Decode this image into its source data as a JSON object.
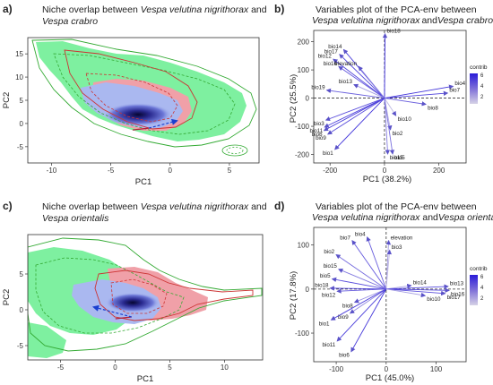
{
  "chart_data": [
    {
      "panel_label": "a)",
      "type": "scatter",
      "title_parts": [
        {
          "text": "Niche overlap between ",
          "italic": false
        },
        {
          "text": "Vespa velutina nigrithorax",
          "italic": true
        },
        {
          "text": " and",
          "italic": false
        }
      ],
      "title_line2_parts": [
        {
          "text": "Vespa crabro",
          "italic": true
        }
      ],
      "xlabel": "PC1",
      "ylabel": "PC2",
      "xticks": [
        -10,
        -5,
        0,
        5
      ],
      "yticks": [
        -5,
        0,
        5,
        10,
        15
      ],
      "xlim": [
        -12,
        7.5
      ],
      "ylim": [
        -8.5,
        18.5
      ],
      "colors": {
        "species_a": "#7ef0a0",
        "species_b": "#f0a0a8",
        "overlap": "#aab8f0",
        "density": "#0b0b45",
        "arrow": "#1a3fd0"
      },
      "arrow": {
        "from": [
          -1.8,
          -1.0
        ],
        "to": [
          0.6,
          0.6
        ]
      }
    },
    {
      "panel_label": "b)",
      "type": "scatter",
      "title_line1": "Variables plot of the PCA-env between",
      "title_parts": [
        {
          "text": "Vespa velutina nigrithorax",
          "italic": true
        },
        {
          "text": "and",
          "italic": false
        },
        {
          "text": "Vespa crabro",
          "italic": true
        }
      ],
      "xlabel": "PC1 (38.2%)",
      "ylabel": "PC2 (25.5%)",
      "xticks": [
        -200,
        0,
        200
      ],
      "yticks": [
        -200,
        -100,
        0,
        100,
        200
      ],
      "xlim": [
        -260,
        300
      ],
      "ylim": [
        -230,
        240
      ],
      "legend": {
        "title": "contrib",
        "ticks": [
          6,
          4,
          2
        ],
        "placement": "right"
      },
      "vectors": [
        {
          "name": "bio18",
          "x": 2,
          "y": 228,
          "contrib": 6.5
        },
        {
          "name": "bio14",
          "x": -150,
          "y": 172,
          "contrib": 5.6
        },
        {
          "name": "bio17",
          "x": -165,
          "y": 155,
          "contrib": 5.6
        },
        {
          "name": "bio12",
          "x": -188,
          "y": 138,
          "contrib": 5.5
        },
        {
          "name": "elevation",
          "x": -95,
          "y": 112,
          "contrib": 3.2
        },
        {
          "name": "bio16",
          "x": -168,
          "y": 112,
          "contrib": 4.6
        },
        {
          "name": "bio13",
          "x": -112,
          "y": 48,
          "contrib": 2.0
        },
        {
          "name": "bio19",
          "x": -212,
          "y": 28,
          "contrib": 4.3
        },
        {
          "name": "bio4",
          "x": 252,
          "y": 42,
          "contrib": 6.0
        },
        {
          "name": "bio7",
          "x": 232,
          "y": 18,
          "contrib": 5.5
        },
        {
          "name": "bio8",
          "x": 152,
          "y": -22,
          "contrib": 4.2
        },
        {
          "name": "bio10",
          "x": 42,
          "y": -62,
          "contrib": 1.0
        },
        {
          "name": "bio2",
          "x": 22,
          "y": -112,
          "contrib": 1.3
        },
        {
          "name": "bio3",
          "x": -215,
          "y": -78,
          "contrib": 5.0
        },
        {
          "name": "bio11",
          "x": -220,
          "y": -103,
          "contrib": 5.6
        },
        {
          "name": "bio6",
          "x": -222,
          "y": -115,
          "contrib": 5.8
        },
        {
          "name": "bio9",
          "x": -208,
          "y": -128,
          "contrib": 5.0
        },
        {
          "name": "bio1",
          "x": -182,
          "y": -182,
          "contrib": 6.1
        },
        {
          "name": "bio15",
          "x": 12,
          "y": -198,
          "contrib": 3.2
        },
        {
          "name": "bio5",
          "x": 30,
          "y": -198,
          "contrib": 3.8
        }
      ]
    },
    {
      "panel_label": "c)",
      "type": "scatter",
      "title_parts": [
        {
          "text": "Niche overlap between ",
          "italic": false
        },
        {
          "text": "Vespa velutina nigrithorax",
          "italic": true
        },
        {
          "text": " and",
          "italic": false
        }
      ],
      "title_line2_parts": [
        {
          "text": "Vespa orientalis",
          "italic": true
        }
      ],
      "xlabel": "PC1",
      "ylabel": "PC2",
      "xticks": [
        -5,
        0,
        5,
        10
      ],
      "yticks": [
        -5,
        0,
        5
      ],
      "xlim": [
        -8,
        13.5
      ],
      "ylim": [
        -7,
        10.5
      ],
      "colors": {
        "species_a": "#7ef0a0",
        "species_b": "#f0a0a8",
        "overlap": "#aab8f0",
        "density": "#0b0b45",
        "arrow": "#1a3fd0"
      },
      "arrow": {
        "from": [
          1.5,
          -1.0
        ],
        "to": [
          -2.0,
          0.4
        ]
      }
    },
    {
      "panel_label": "d)",
      "type": "scatter",
      "title_line1": "Variables plot of the PCA-env between",
      "title_parts": [
        {
          "text": "Vespa velutina nigrithorax",
          "italic": true
        },
        {
          "text": " and",
          "italic": false
        },
        {
          "text": "Vespa orientalis",
          "italic": true
        }
      ],
      "xlabel": "PC1 (45.0%)",
      "ylabel": "PC2 (17.8%)",
      "xticks": [
        -100,
        0,
        100
      ],
      "yticks": [
        -100,
        0,
        100
      ],
      "xlim": [
        -145,
        160
      ],
      "ylim": [
        -165,
        140
      ],
      "legend": {
        "title": "contrib",
        "ticks": [
          6,
          4,
          2
        ],
        "placement": "right"
      },
      "vectors": [
        {
          "name": "bio4",
          "x": -38,
          "y": 118,
          "contrib": 4.4
        },
        {
          "name": "bio7",
          "x": -68,
          "y": 110,
          "contrib": 4.7
        },
        {
          "name": "elevation",
          "x": 5,
          "y": 110,
          "contrib": 2.2
        },
        {
          "name": "bio2",
          "x": -100,
          "y": 78,
          "contrib": 3.9
        },
        {
          "name": "bio3",
          "x": 7,
          "y": 88,
          "contrib": 0.9
        },
        {
          "name": "bio15",
          "x": -95,
          "y": 45,
          "contrib": 3.4
        },
        {
          "name": "bio5",
          "x": -108,
          "y": 23,
          "contrib": 5.0
        },
        {
          "name": "bio18",
          "x": -112,
          "y": 2,
          "contrib": 5.5
        },
        {
          "name": "bio12",
          "x": -98,
          "y": -5,
          "contrib": 4.6
        },
        {
          "name": "bio14",
          "x": 50,
          "y": 8,
          "contrib": 1.8
        },
        {
          "name": "bio13",
          "x": 124,
          "y": 6,
          "contrib": 5.2
        },
        {
          "name": "bio16",
          "x": 126,
          "y": -3,
          "contrib": 5.4
        },
        {
          "name": "bio17",
          "x": 118,
          "y": -10,
          "contrib": 5.0
        },
        {
          "name": "bio10",
          "x": 78,
          "y": -15,
          "contrib": 2.1
        },
        {
          "name": "bio8",
          "x": -63,
          "y": -30,
          "contrib": 2.6
        },
        {
          "name": "bio9",
          "x": -72,
          "y": -55,
          "contrib": 2.8
        },
        {
          "name": "bio1",
          "x": -110,
          "y": -70,
          "contrib": 5.7
        },
        {
          "name": "bio11",
          "x": -98,
          "y": -118,
          "contrib": 5.6
        },
        {
          "name": "bio6",
          "x": -70,
          "y": -142,
          "contrib": 5.9
        }
      ]
    }
  ]
}
